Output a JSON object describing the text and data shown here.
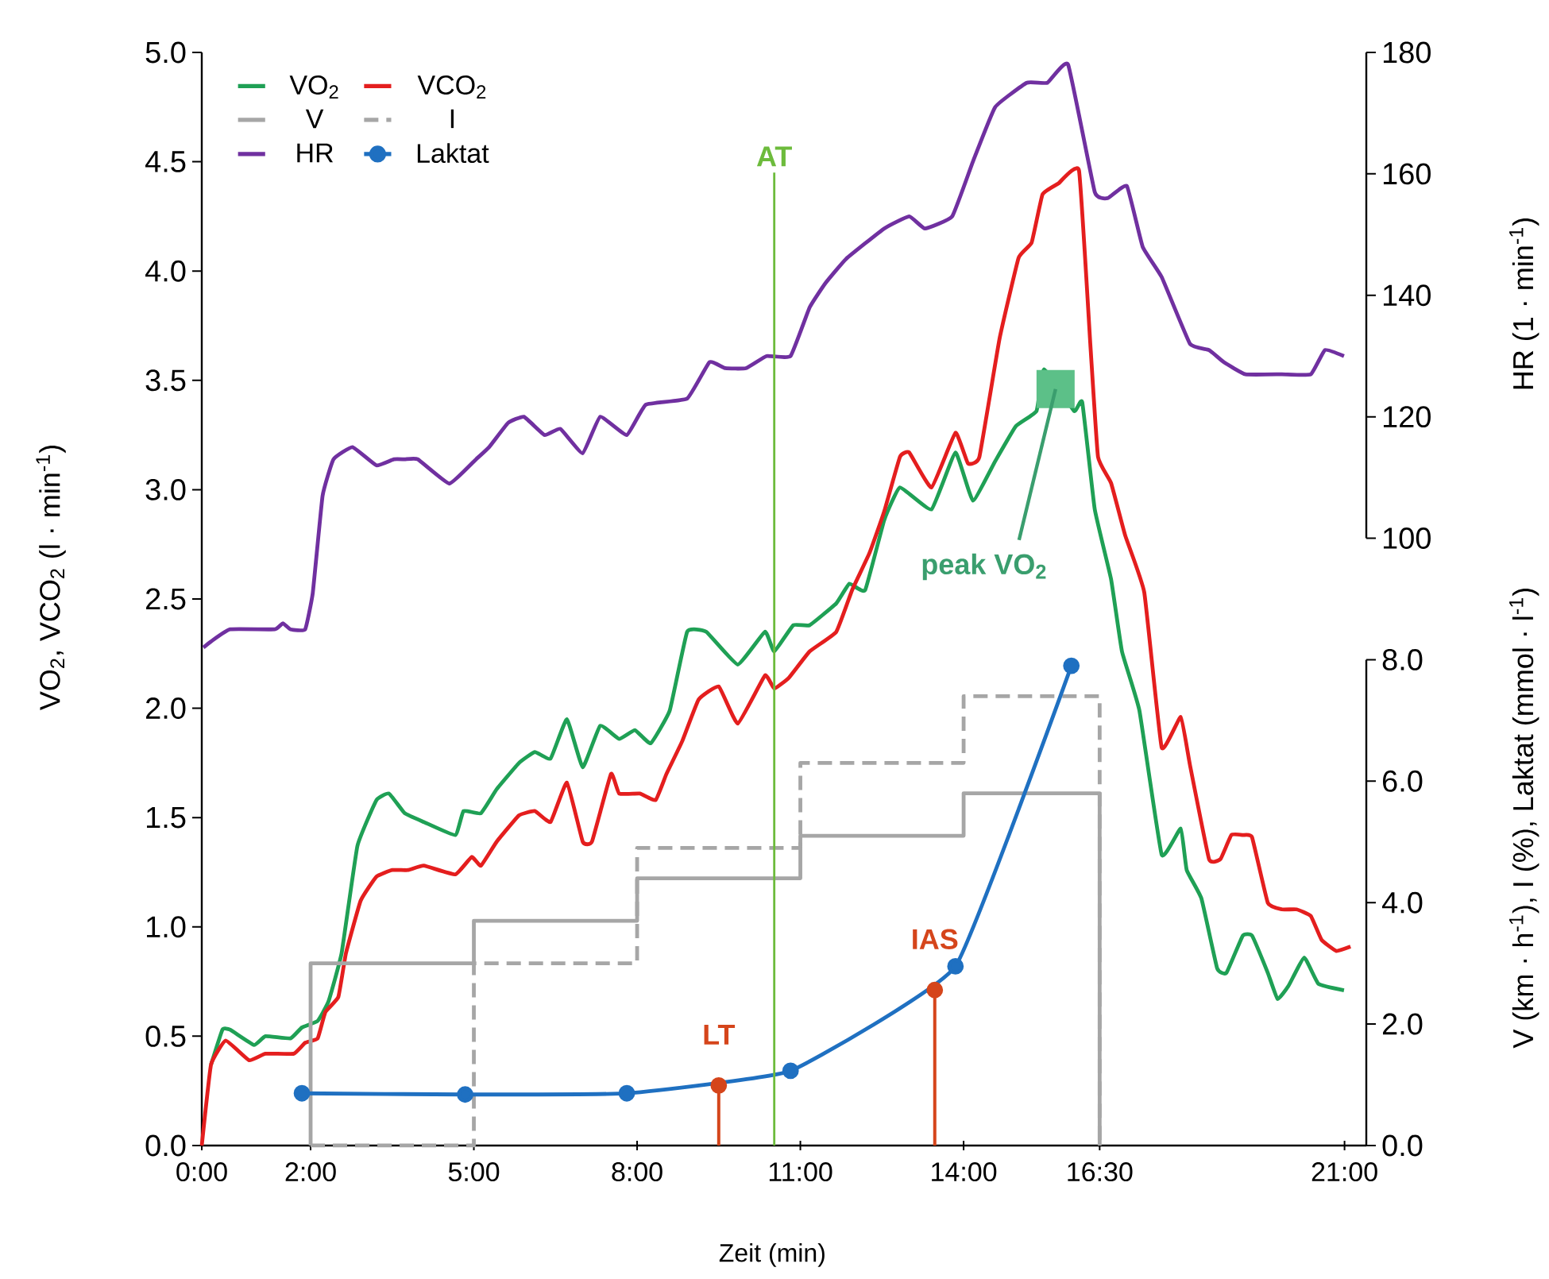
{
  "chart_data": {
    "type": "line",
    "xlabel": "Zeit (min)",
    "ylabel": "VO$_{2}$, VCO$_{2}$ (l · min$^{-1}$)",
    "y2label": "HR (1 · min$^{-1}$)",
    "y3label": "V (km · h$^{-1}$), I (%), Laktat (mmol · l$^{-1}$)",
    "xlim": [
      0,
      21.4
    ],
    "ylim": [
      0,
      5.0
    ],
    "y2lim": [
      0,
      180
    ],
    "y3lim": [
      0,
      18
    ],
    "xticks": [
      {
        "value": 0,
        "label": "0:00"
      },
      {
        "value": 2,
        "label": "2:00"
      },
      {
        "value": 5,
        "label": "5:00"
      },
      {
        "value": 8,
        "label": "8:00"
      },
      {
        "value": 11,
        "label": "11:00"
      },
      {
        "value": 14,
        "label": "14:00"
      },
      {
        "value": 16.5,
        "label": "16:30"
      },
      {
        "value": 21,
        "label": "21:00"
      }
    ],
    "yticks": [
      {
        "value": 0,
        "label": "0.0"
      },
      {
        "value": 0.5,
        "label": "0.5"
      },
      {
        "value": 1,
        "label": "1.0"
      },
      {
        "value": 1.5,
        "label": "1.5"
      },
      {
        "value": 2,
        "label": "2.0"
      },
      {
        "value": 2.5,
        "label": "2.5"
      },
      {
        "value": 3,
        "label": "3.0"
      },
      {
        "value": 3.5,
        "label": "3.5"
      },
      {
        "value": 4,
        "label": "4.0"
      },
      {
        "value": 4.5,
        "label": "4.5"
      },
      {
        "value": 5,
        "label": "5.0"
      }
    ],
    "y2ticks": [
      100,
      120,
      140,
      160,
      180
    ],
    "y3ticks": [
      {
        "value": 0,
        "label": "0.0"
      },
      {
        "value": 2,
        "label": "2.0"
      },
      {
        "value": 4,
        "label": "4.0"
      },
      {
        "value": 6,
        "label": "6.0"
      },
      {
        "value": 8,
        "label": "8.0"
      }
    ],
    "legend": "top left",
    "series": [
      {
        "name": "VO$_{2}$",
        "color": "#1fa055",
        "x": [
          0.17,
          0.38,
          0.52,
          0.96,
          1.17,
          1.63,
          1.84,
          2.13,
          2.33,
          2.57,
          2.86,
          3.21,
          3.44,
          3.73,
          4.08,
          4.66,
          4.81,
          5.13,
          5.42,
          5.83,
          6.12,
          6.41,
          6.71,
          7.0,
          7.32,
          7.67,
          7.96,
          8.25,
          8.6,
          8.92,
          9.27,
          9.85,
          10.35,
          10.52,
          10.87,
          11.17,
          11.66,
          11.9,
          12.19,
          12.54,
          12.83,
          13.41,
          13.85,
          14.17,
          14.58,
          14.96,
          15.34,
          15.48,
          16.03,
          16.18,
          16.41,
          16.71,
          16.91,
          17.23,
          17.64,
          17.99,
          18.1,
          18.37,
          18.66,
          18.83,
          19.13,
          19.3,
          19.59,
          19.77,
          19.97,
          20.26,
          20.52,
          20.99
        ],
        "values": [
          0.37,
          0.53,
          0.53,
          0.46,
          0.5,
          0.49,
          0.54,
          0.57,
          0.66,
          0.88,
          1.37,
          1.58,
          1.61,
          1.52,
          1.48,
          1.42,
          1.53,
          1.52,
          1.63,
          1.75,
          1.8,
          1.77,
          1.95,
          1.73,
          1.92,
          1.86,
          1.9,
          1.84,
          1.99,
          2.35,
          2.35,
          2.2,
          2.35,
          2.26,
          2.38,
          2.38,
          2.48,
          2.57,
          2.54,
          2.86,
          3.01,
          2.91,
          3.17,
          2.95,
          3.13,
          3.29,
          3.36,
          3.55,
          3.36,
          3.4,
          2.91,
          2.59,
          2.26,
          1.99,
          1.33,
          1.45,
          1.26,
          1.13,
          0.81,
          0.79,
          0.96,
          0.96,
          0.79,
          0.67,
          0.73,
          0.86,
          0.74,
          0.71
        ]
      },
      {
        "name": "VCO$_{2}$",
        "color": "#e41e1e",
        "x": [
          0,
          0.17,
          0.44,
          0.87,
          1.17,
          1.69,
          1.9,
          2.13,
          2.27,
          2.51,
          2.65,
          2.92,
          3.21,
          3.5,
          3.79,
          4.08,
          4.66,
          4.96,
          5.13,
          5.42,
          5.83,
          6.12,
          6.41,
          6.71,
          7.0,
          7.17,
          7.52,
          7.67,
          8.05,
          8.34,
          8.54,
          8.83,
          9.13,
          9.5,
          9.85,
          10.35,
          10.52,
          10.79,
          11.17,
          11.66,
          11.95,
          12.27,
          12.54,
          12.83,
          13.0,
          13.41,
          13.85,
          14.08,
          14.29,
          14.66,
          15.01,
          15.25,
          15.45,
          15.74,
          16.12,
          16.33,
          16.47,
          16.71,
          16.97,
          17.32,
          17.64,
          17.99,
          18.16,
          18.51,
          18.72,
          18.92,
          19.13,
          19.3,
          19.59,
          19.85,
          20.12,
          20.38,
          20.58,
          20.85,
          21.11
        ],
        "values": [
          0,
          0.37,
          0.48,
          0.39,
          0.42,
          0.42,
          0.47,
          0.49,
          0.61,
          0.68,
          0.88,
          1.12,
          1.23,
          1.26,
          1.26,
          1.28,
          1.24,
          1.32,
          1.28,
          1.39,
          1.51,
          1.53,
          1.48,
          1.66,
          1.39,
          1.39,
          1.7,
          1.61,
          1.61,
          1.58,
          1.7,
          1.85,
          2.04,
          2.1,
          1.93,
          2.15,
          2.09,
          2.14,
          2.26,
          2.35,
          2.54,
          2.71,
          2.9,
          3.15,
          3.17,
          3.01,
          3.26,
          3.12,
          3.15,
          3.69,
          4.06,
          4.13,
          4.35,
          4.4,
          4.46,
          3.66,
          3.15,
          3.03,
          2.79,
          2.53,
          1.82,
          1.96,
          1.74,
          1.31,
          1.31,
          1.42,
          1.42,
          1.41,
          1.11,
          1.08,
          1.08,
          1.05,
          0.94,
          0.89,
          0.91
        ]
      },
      {
        "name": "V",
        "color": "#a6a6a6",
        "type": "step",
        "axis": "y3",
        "x": [
          2,
          2,
          5,
          8,
          11,
          14,
          16.5,
          16.5
        ],
        "values": [
          0,
          3.0,
          3.7,
          4.4,
          5.1,
          5.8,
          5.8,
          0
        ]
      },
      {
        "name": "I",
        "color": "#a6a6a6",
        "type": "step",
        "axis": "y3",
        "line_style": "dashed",
        "x": [
          2,
          5,
          5,
          8,
          11,
          14,
          16.5,
          16.5
        ],
        "values": [
          0,
          0,
          3.0,
          4.9,
          6.3,
          7.4,
          7.4,
          0
        ]
      },
      {
        "name": "HR",
        "color": "#7030a0",
        "axis": "y2",
        "x": [
          0.03,
          0.17,
          0.52,
          1.34,
          1.49,
          1.63,
          1.9,
          2.04,
          2.22,
          2.42,
          2.77,
          3.21,
          3.53,
          3.73,
          3.97,
          4.55,
          5.04,
          5.28,
          5.63,
          5.92,
          6.3,
          6.59,
          7.0,
          7.32,
          7.81,
          8.16,
          8.92,
          9.33,
          9.62,
          10.0,
          10.38,
          10.82,
          11.17,
          11.46,
          11.84,
          12.54,
          13.0,
          13.29,
          13.79,
          14.17,
          14.58,
          15.16,
          15.54,
          15.92,
          16.41,
          16.65,
          17.0,
          17.29,
          17.64,
          18.16,
          18.51,
          18.78,
          19.18,
          19.85,
          20.38,
          20.64,
          20.99
        ],
        "values": [
          82,
          83,
          85,
          85,
          86,
          85,
          85,
          91,
          107,
          113,
          115,
          112,
          113,
          113,
          113,
          109,
          113,
          115,
          119,
          120,
          117,
          118,
          114,
          120,
          117,
          122,
          123,
          129,
          128,
          128,
          130,
          130,
          138,
          142,
          146,
          151,
          153,
          151,
          153,
          162,
          171,
          175,
          175,
          178,
          157,
          156,
          158,
          148,
          143,
          132,
          131,
          129,
          127,
          127,
          127,
          131,
          130
        ]
      },
      {
        "name": "Laktat",
        "color": "#1f70c1",
        "axis": "y3",
        "marker": "circle",
        "x": [
          1.84,
          4.84,
          7.81,
          10.82,
          13.85,
          15.98
        ],
        "values": [
          0.86,
          0.84,
          0.86,
          1.23,
          2.95,
          7.9
        ]
      },
      {
        "type": "scatter",
        "color": "#d5451b",
        "axis": "y3",
        "marker": "circle",
        "x": [
          9.5,
          13.47
        ],
        "values": [
          0.99,
          2.56
        ]
      }
    ],
    "ref_lines": [
      {
        "axis": "x",
        "value": 10.52,
        "label": "AT",
        "color": "#6dbb3c"
      },
      {
        "axis": "x",
        "value": 9.5,
        "label": "LT",
        "color": "#d5451b"
      },
      {
        "axis": "x",
        "value": 13.47,
        "label": "IAS",
        "color": "#d5451b"
      }
    ],
    "annotations": [
      {
        "text": "peak VO$_{2}$",
        "x": 15.69,
        "y": 3.46
      }
    ]
  }
}
